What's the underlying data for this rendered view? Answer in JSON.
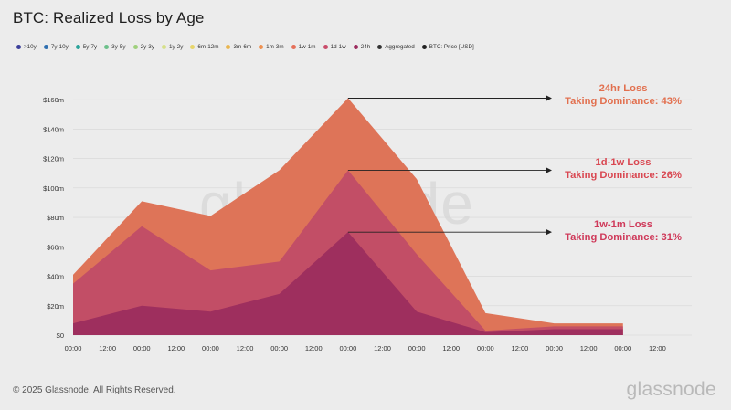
{
  "title": "BTC: Realized Loss by Age",
  "legend": [
    {
      "label": ">10y",
      "color": "#3b3f9a",
      "struck": false
    },
    {
      "label": "7y-10y",
      "color": "#2f6fb0",
      "struck": false
    },
    {
      "label": "5y-7y",
      "color": "#2aa39a",
      "struck": false
    },
    {
      "label": "3y-5y",
      "color": "#6cc08a",
      "struck": false
    },
    {
      "label": "2y-3y",
      "color": "#9fd07c",
      "struck": false
    },
    {
      "label": "1y-2y",
      "color": "#d6e08a",
      "struck": false
    },
    {
      "label": "6m-12m",
      "color": "#e7d56a",
      "struck": false
    },
    {
      "label": "3m-6m",
      "color": "#e9b54e",
      "struck": false
    },
    {
      "label": "1m-3m",
      "color": "#ee9150",
      "struck": false
    },
    {
      "label": "1w-1m",
      "color": "#e5705a",
      "struck": false
    },
    {
      "label": "1d-1w",
      "color": "#c94c6a",
      "struck": false
    },
    {
      "label": "24h",
      "color": "#9c2b5e",
      "struck": false
    },
    {
      "label": "Aggregated",
      "color": "#333333",
      "struck": false
    },
    {
      "label": "BTC: Price [USD]",
      "color": "#222222",
      "struck": true
    }
  ],
  "chart_data": {
    "type": "area",
    "x": [
      "00:00",
      "12:00",
      "00:00",
      "12:00",
      "00:00",
      "12:00",
      "00:00",
      "12:00",
      "00:00",
      "12:00",
      "00:00",
      "12:00",
      "00:00",
      "12:00",
      "00:00",
      "12:00",
      "00:00",
      "12:00"
    ],
    "y_ticks": [
      "$0",
      "$20m",
      "$40m",
      "$60m",
      "$80m",
      "$100m",
      "$120m",
      "$140m",
      "$160m"
    ],
    "ylim": [
      0,
      170
    ],
    "series": [
      {
        "name": "1w-1m",
        "color": "#de7458",
        "cumulative_values": [
          41,
          91,
          81,
          112,
          161,
          106,
          15,
          8,
          8
        ]
      },
      {
        "name": "1d-1w",
        "color": "#c24e66",
        "cumulative_values": [
          35,
          74,
          44,
          50,
          112,
          55,
          3,
          6,
          6
        ]
      },
      {
        "name": "24h",
        "color": "#9e2f5e",
        "cumulative_values": [
          8,
          20,
          16,
          28,
          70,
          16,
          2,
          4,
          4
        ]
      }
    ],
    "annotations": [
      {
        "line1": "24hr Loss",
        "line2": "Taking Dominance: 43%",
        "color": "#e2704f"
      },
      {
        "line1": "1d-1w Loss",
        "line2": "Taking Dominance: 26%",
        "color": "#d94751"
      },
      {
        "line1": "1w-1m Loss",
        "line2": "Taking Dominance: 31%",
        "color": "#cf3a5a"
      }
    ]
  },
  "watermark": "glassnode",
  "footer": "© 2025 Glassnode. All Rights Reserved.",
  "brand": "glassnode"
}
